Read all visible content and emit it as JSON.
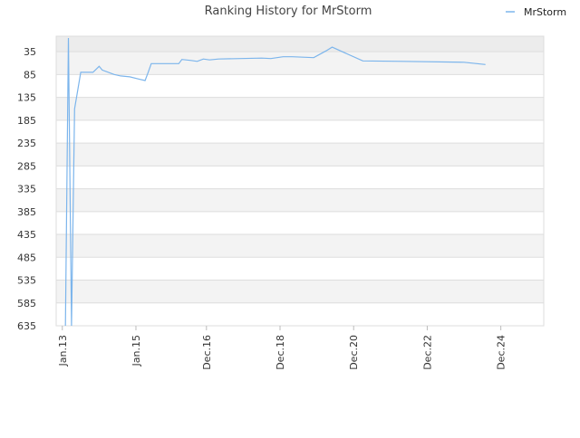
{
  "chart_data": {
    "type": "line",
    "title": "Ranking History for MrStorm",
    "x": [
      "2013-02",
      "2013-03",
      "2013-04",
      "2013-05",
      "2013-06",
      "2013-07",
      "2013-11",
      "2014-01",
      "2014-02",
      "2014-06",
      "2014-08",
      "2014-11",
      "2015-02",
      "2015-04",
      "2015-05",
      "2015-06",
      "2016-03",
      "2016-04",
      "2016-07",
      "2016-09",
      "2016-11",
      "2017-01",
      "2017-04",
      "2018-06",
      "2018-09",
      "2019-01",
      "2019-04",
      "2019-11",
      "2020-03",
      "2020-05",
      "2021-03",
      "2022-04",
      "2023-12",
      "2024-07"
    ],
    "series": [
      {
        "name": "MrStorm",
        "color": "#7cb5ec",
        "values": [
          635,
          5,
          635,
          160,
          120,
          80,
          80,
          67,
          75,
          85,
          88,
          90,
          95,
          98,
          80,
          61,
          61,
          52,
          54,
          56,
          51,
          53,
          51,
          49,
          50,
          46,
          46,
          48,
          33,
          25,
          55,
          56,
          58,
          63
        ]
      }
    ],
    "xlim": [
      "2012-11",
      "2026-02"
    ],
    "xticks": [
      {
        "value": "2013-01",
        "label": "Jan.13"
      },
      {
        "value": "2015-01",
        "label": "Jan.15"
      },
      {
        "value": "2016-12",
        "label": "Dec.16"
      },
      {
        "value": "2018-12",
        "label": "Dec.18"
      },
      {
        "value": "2020-12",
        "label": "Dec.20"
      },
      {
        "value": "2022-12",
        "label": "Dec.22"
      },
      {
        "value": "2024-12",
        "label": "Dec.24"
      }
    ],
    "ylim": [
      1,
      635
    ],
    "y_reversed": true,
    "yticks": [
      35,
      85,
      135,
      185,
      235,
      285,
      335,
      385,
      435,
      485,
      535,
      585,
      635
    ],
    "grid": true,
    "legend": "top-right"
  }
}
